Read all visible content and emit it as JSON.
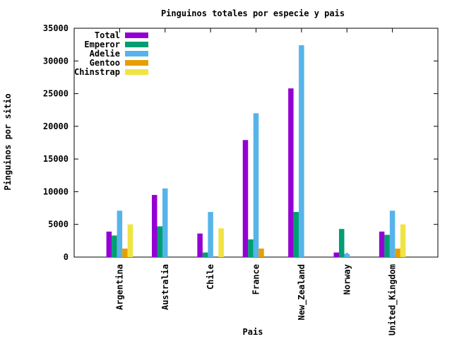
{
  "chart_data": {
    "type": "bar",
    "title": "Pinguinos totales por especie y pais",
    "xlabel": "Pais",
    "ylabel": "Pinguinos por sitio",
    "ylim": [
      0,
      35000
    ],
    "yticks": [
      "0",
      "5000",
      "10000",
      "15000",
      "20000",
      "25000",
      "30000",
      "35000"
    ],
    "legend_position": "top-left",
    "grid": false,
    "categories": [
      "Argentina",
      "Australia",
      "Chile",
      "France",
      "New_Zealand",
      "Norway",
      "United_Kingdom"
    ],
    "series": [
      {
        "name": "Total",
        "color": "#9400d3",
        "values": [
          3900,
          9500,
          3600,
          17900,
          25800,
          700,
          3900
        ]
      },
      {
        "name": "Emperor",
        "color": "#009e73",
        "values": [
          3300,
          4700,
          700,
          2700,
          6900,
          4300,
          3400
        ]
      },
      {
        "name": "Adelie",
        "color": "#56b4e9",
        "values": [
          7100,
          10500,
          6900,
          22000,
          32400,
          500,
          7100
        ]
      },
      {
        "name": "Gentoo",
        "color": "#e69f00",
        "values": [
          1300,
          0,
          0,
          1300,
          0,
          0,
          1300
        ]
      },
      {
        "name": "Chinstrap",
        "color": "#f0e442",
        "values": [
          5000,
          0,
          4400,
          0,
          0,
          0,
          5000
        ]
      }
    ]
  }
}
